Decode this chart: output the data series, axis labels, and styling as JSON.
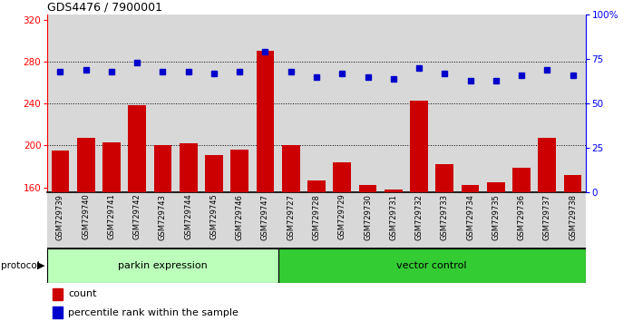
{
  "title": "GDS4476 / 7900001",
  "samples": [
    "GSM729739",
    "GSM729740",
    "GSM729741",
    "GSM729742",
    "GSM729743",
    "GSM729744",
    "GSM729745",
    "GSM729746",
    "GSM729747",
    "GSM729727",
    "GSM729728",
    "GSM729729",
    "GSM729730",
    "GSM729731",
    "GSM729732",
    "GSM729733",
    "GSM729734",
    "GSM729735",
    "GSM729736",
    "GSM729737",
    "GSM729738"
  ],
  "counts": [
    195,
    207,
    203,
    238,
    200,
    202,
    191,
    196,
    290,
    200,
    167,
    184,
    162,
    158,
    243,
    182,
    162,
    165,
    179,
    207,
    172
  ],
  "percentile_ranks": [
    68,
    69,
    68,
    73,
    68,
    68,
    67,
    68,
    79,
    68,
    65,
    67,
    65,
    64,
    70,
    67,
    63,
    63,
    66,
    69,
    66
  ],
  "parkin_count": 9,
  "vector_count": 12,
  "parkin_label": "parkin expression",
  "vector_label": "vector control",
  "protocol_label": "protocol",
  "bar_color": "#cc0000",
  "dot_color": "#0000cc",
  "parkin_bg": "#bbffbb",
  "vector_bg": "#33cc33",
  "ylim_left": [
    155,
    325
  ],
  "ylim_right": [
    0,
    100
  ],
  "yticks_left": [
    160,
    200,
    240,
    280,
    320
  ],
  "yticks_right": [
    0,
    25,
    50,
    75,
    100
  ],
  "grid_vals": [
    200,
    240,
    280
  ],
  "legend_count_label": "count",
  "legend_pct_label": "percentile rank within the sample",
  "col_bg": "#d8d8d8",
  "baseline": 155
}
